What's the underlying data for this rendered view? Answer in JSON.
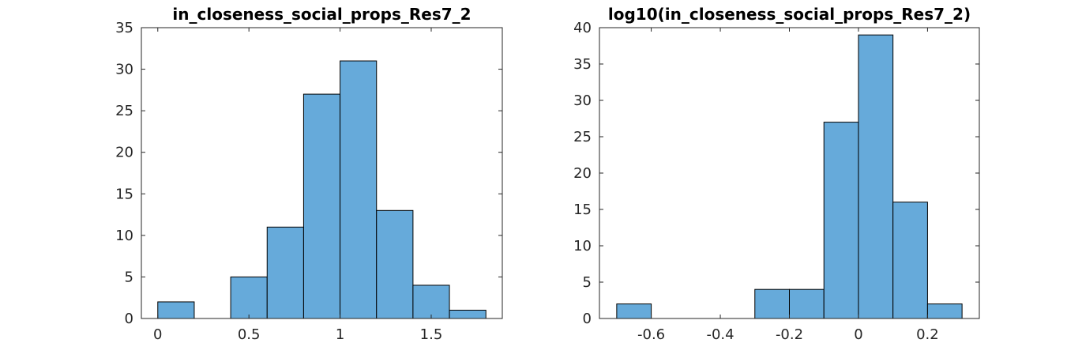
{
  "chart_data": [
    {
      "type": "bar",
      "title": "in_closeness_social_props_Res7_2",
      "bar_color": "#66AADA",
      "xlim": [
        -0.09,
        1.89
      ],
      "ylim": [
        0,
        35
      ],
      "xticks": [
        0,
        0.5,
        1,
        1.5
      ],
      "xtick_labels": [
        "0",
        "0.5",
        "1",
        "1.5"
      ],
      "yticks": [
        0,
        5,
        10,
        15,
        20,
        25,
        30,
        35
      ],
      "ytick_labels": [
        "0",
        "5",
        "10",
        "15",
        "20",
        "25",
        "30",
        "35"
      ],
      "bin_edges": [
        0,
        0.2,
        0.4,
        0.6,
        0.8,
        1.0,
        1.2,
        1.4,
        1.6,
        1.8
      ],
      "counts": [
        2,
        0,
        5,
        11,
        27,
        31,
        13,
        4,
        1
      ]
    },
    {
      "type": "bar",
      "title": "log10(in_closeness_social_props_Res7_2)",
      "bar_color": "#66AADA",
      "xlim": [
        -0.75,
        0.35
      ],
      "ylim": [
        0,
        40
      ],
      "xticks": [
        -0.6,
        -0.4,
        -0.2,
        0,
        0.2
      ],
      "xtick_labels": [
        "-0.6",
        "-0.4",
        "-0.2",
        "0",
        "0.2"
      ],
      "yticks": [
        0,
        5,
        10,
        15,
        20,
        25,
        30,
        35,
        40
      ],
      "ytick_labels": [
        "0",
        "5",
        "10",
        "15",
        "20",
        "25",
        "30",
        "35",
        "40"
      ],
      "bin_edges": [
        -0.7,
        -0.6,
        -0.5,
        -0.4,
        -0.3,
        -0.2,
        -0.1,
        0.0,
        0.1,
        0.2,
        0.3
      ],
      "counts": [
        2,
        0,
        0,
        0,
        4,
        4,
        27,
        39,
        16,
        2
      ]
    }
  ]
}
